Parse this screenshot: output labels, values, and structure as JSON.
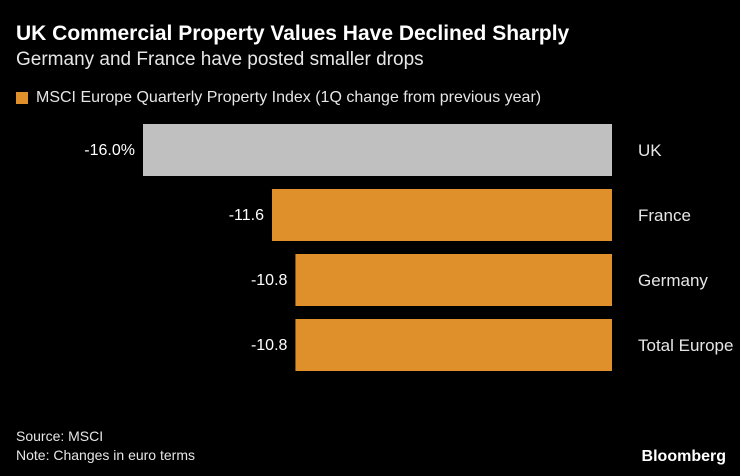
{
  "header": {
    "title": "UK Commercial Property Values Have Declined Sharply",
    "subtitle": "Germany and France have posted smaller drops"
  },
  "chart_data": {
    "type": "bar",
    "orientation": "horizontal",
    "legend": {
      "label": "MSCI Europe Quarterly Property Index (1Q change from previous year)",
      "color": "#e0902a",
      "placement": "top-left"
    },
    "categories": [
      "UK",
      "France",
      "Germany",
      "Total Europe"
    ],
    "values": [
      -16.0,
      -11.6,
      -10.8,
      -10.8
    ],
    "data_labels": [
      "-16.0%",
      "-11.6",
      "-10.8",
      "-10.8"
    ],
    "colors": [
      "#c0c0c0",
      "#e0902a",
      "#e0902a",
      "#e0902a"
    ],
    "xlim": [
      -16,
      0
    ],
    "grid": false
  },
  "footer": {
    "source": "Source: MSCI",
    "note": "Note: Changes in euro terms",
    "brand": "Bloomberg"
  }
}
